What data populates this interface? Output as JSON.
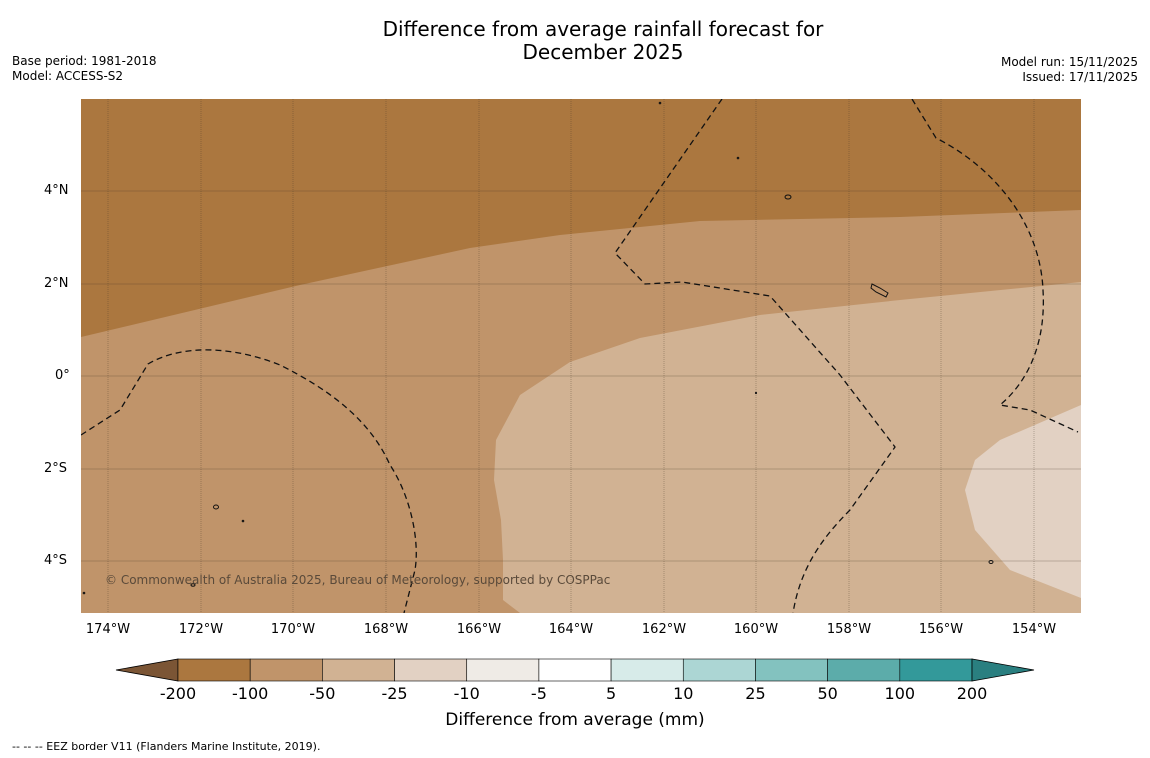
{
  "title_line1": "Difference from average rainfall forecast for",
  "title_line2": "December 2025",
  "meta": {
    "base_period": "Base period: 1981-2018",
    "model": "Model: ACCESS-S2",
    "model_run": "Model run: 15/11/2025",
    "issued": "Issued: 17/11/2025"
  },
  "map": {
    "lat_labels": [
      "4°N",
      "2°N",
      "0°",
      "2°S",
      "4°S"
    ],
    "lon_labels": [
      "174°W",
      "172°W",
      "170°W",
      "168°W",
      "166°W",
      "164°W",
      "162°W",
      "160°W",
      "158°W",
      "156°W",
      "154°W"
    ],
    "copyright": "© Commonwealth of Australia 2025, Bureau of Meteorology, supported by COSPPac",
    "region_colors": {
      "band_-200_-100": "#ab773f",
      "band_-100_-50": "#c0946a",
      "band_-50_-25": "#d1b293",
      "band_-25_-10": "#e2d1c3"
    }
  },
  "colorbar": {
    "ticks": [
      "-200",
      "-100",
      "-50",
      "-25",
      "-10",
      "-5",
      "5",
      "10",
      "25",
      "50",
      "100",
      "200"
    ],
    "colors": [
      "#ab773f",
      "#c0946a",
      "#d1b293",
      "#e2d1c3",
      "#efebe6",
      "#ffffff",
      "#d7ebe9",
      "#acd6d4",
      "#83c2bf",
      "#5cacaa",
      "#33999a"
    ],
    "under_color": "#7b5535",
    "over_color": "#2a7f80",
    "label": "Difference from average (mm)"
  },
  "footer": "--  --  -- EEZ border V11 (Flanders Marine Institute, 2019)."
}
